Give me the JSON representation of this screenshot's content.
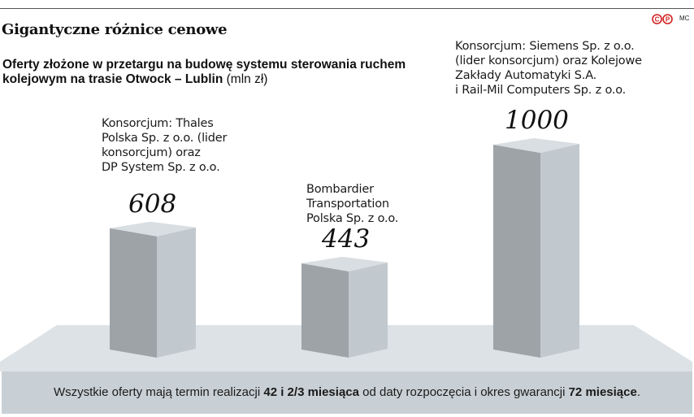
{
  "title": "Gigantyczne różnice cenowe",
  "credit": "MC",
  "subtitle": {
    "strong": "Oferty złożone w przetargu na budowę systemu sterowania ruchem kolejowym na trasie Otwock – Lublin",
    "unit": " (mln zł)"
  },
  "chart_data": {
    "type": "bar",
    "categories": [
      [
        "Konsorcjum: Thales",
        "Polska Sp. z o.o. (lider",
        "konsorcjum) oraz",
        "DP System Sp. z o.o."
      ],
      [
        "Bombardier",
        "Transportation",
        "Polska Sp. z o.o."
      ],
      [
        "Konsorcjum: Siemens Sp. z o.o.",
        "(lider konsorcjum) oraz Kolejowe",
        "Zakłady Automatyki S.A.",
        "i Rail-Mil Computers Sp. z o.o."
      ]
    ],
    "values": [
      608,
      443,
      1000
    ],
    "value_labels": [
      "608",
      "443",
      "1000"
    ],
    "unit": "mln zł",
    "colors": {
      "bar_front": "#9ea3a8",
      "bar_side": "#c2c9ce",
      "bar_top": "#d9dee2",
      "floor": "#dde2e6"
    }
  },
  "footer": {
    "text1": "Wszystkie oferty mają termin realizacji ",
    "bold1": "42 i 2/3 miesiąca",
    "text2": " od daty rozpoczęcia i okres gwarancji ",
    "bold2": "72 miesiące",
    "text3": "."
  }
}
